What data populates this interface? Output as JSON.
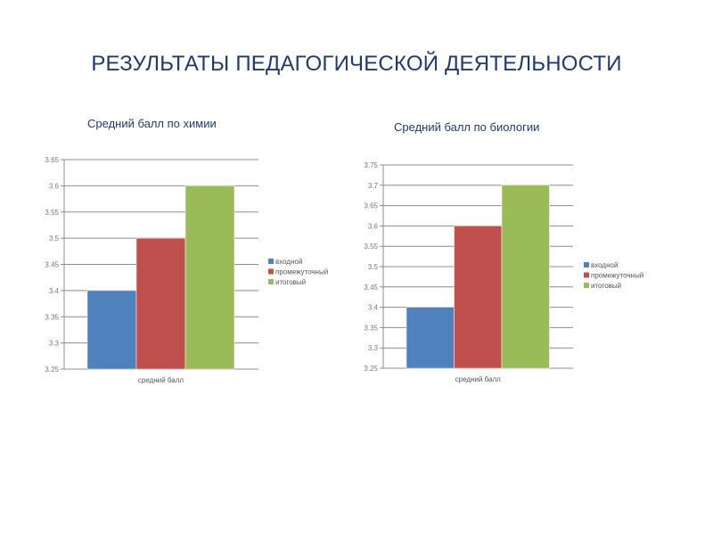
{
  "page": {
    "title": "РЕЗУЛЬТАТЫ ПЕДАГОГИЧЕСКОЙ ДЕЯТЕЛЬНОСТИ"
  },
  "colors": {
    "title": "#1f3a72",
    "grid": "#8c8c8c",
    "series": [
      "#4f81bd",
      "#c0504d",
      "#9bbb59"
    ]
  },
  "chart_data": [
    {
      "type": "bar",
      "title": "Средний балл по химии",
      "categories": [
        "средний балл"
      ],
      "series": [
        {
          "name": "входной",
          "values": [
            3.4
          ]
        },
        {
          "name": "промежуточный",
          "values": [
            3.5
          ]
        },
        {
          "name": "итоговый",
          "values": [
            3.6
          ]
        }
      ],
      "ylim": [
        3.25,
        3.65
      ],
      "yticks": [
        "3.25",
        "3.3",
        "3.35",
        "3.4",
        "3.45",
        "3.5",
        "3.55",
        "3.6",
        "3.65"
      ],
      "grid": true,
      "legend": "right"
    },
    {
      "type": "bar",
      "title": "Средний балл по биологии",
      "categories": [
        "средний балл"
      ],
      "series": [
        {
          "name": "входной",
          "values": [
            3.4
          ]
        },
        {
          "name": "промежуточный",
          "values": [
            3.6
          ]
        },
        {
          "name": "итоговый",
          "values": [
            3.7
          ]
        }
      ],
      "ylim": [
        3.25,
        3.75
      ],
      "yticks": [
        "3.25",
        "3.3",
        "3.35",
        "3.4",
        "3.45",
        "3.5",
        "3.55",
        "3.6",
        "3.65",
        "3.7",
        "3.75"
      ],
      "grid": true,
      "legend": "right"
    }
  ]
}
